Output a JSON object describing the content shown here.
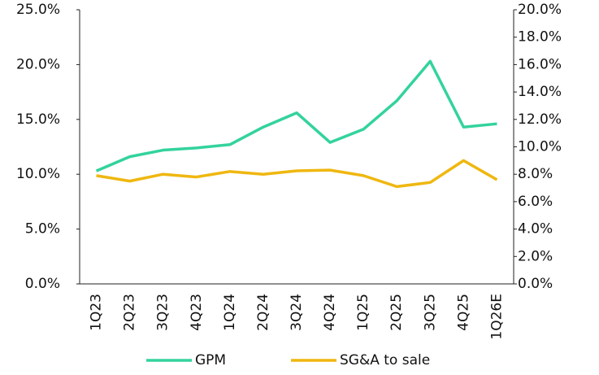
{
  "chart_data": {
    "type": "line",
    "categories": [
      "1Q23",
      "2Q23",
      "3Q23",
      "4Q23",
      "1Q24",
      "2Q24",
      "3Q24",
      "4Q24",
      "1Q25",
      "2Q25",
      "3Q25",
      "4Q25",
      "1Q26E"
    ],
    "series": [
      {
        "name": "GPM",
        "color": "#33d39c",
        "values": [
          10.3,
          11.6,
          12.2,
          12.4,
          12.7,
          14.3,
          15.6,
          12.9,
          14.1,
          16.7,
          20.3,
          14.3,
          14.6
        ]
      },
      {
        "name": "SG&A to sale",
        "color": "#efb710",
        "axis": "y2",
        "values": [
          7.9,
          7.5,
          8.0,
          7.8,
          8.2,
          8.0,
          8.25,
          8.3,
          7.9,
          7.1,
          7.4,
          9.0,
          7.6
        ]
      }
    ],
    "ylim": [
      0,
      25
    ],
    "yticks": [
      {
        "value": 0,
        "label": "0.0%"
      },
      {
        "value": 5,
        "label": "5.0%"
      },
      {
        "value": 10,
        "label": "10.0%"
      },
      {
        "value": 15,
        "label": "15.0%"
      },
      {
        "value": 20,
        "label": "20.0%"
      },
      {
        "value": 25,
        "label": "25.0%"
      }
    ],
    "y2lim": [
      0,
      20
    ],
    "y2ticks": [
      {
        "value": 0,
        "label": "0.0%"
      },
      {
        "value": 2,
        "label": "2.0%"
      },
      {
        "value": 4,
        "label": "4.0%"
      },
      {
        "value": 6,
        "label": "6.0%"
      },
      {
        "value": 8,
        "label": "8.0%"
      },
      {
        "value": 10,
        "label": "10.0%"
      },
      {
        "value": 12,
        "label": "12.0%"
      },
      {
        "value": 14,
        "label": "14.0%"
      },
      {
        "value": 16,
        "label": "16.0%"
      },
      {
        "value": 18,
        "label": "18.0%"
      },
      {
        "value": 20,
        "label": "20.0%"
      }
    ],
    "legend": "bottom"
  }
}
